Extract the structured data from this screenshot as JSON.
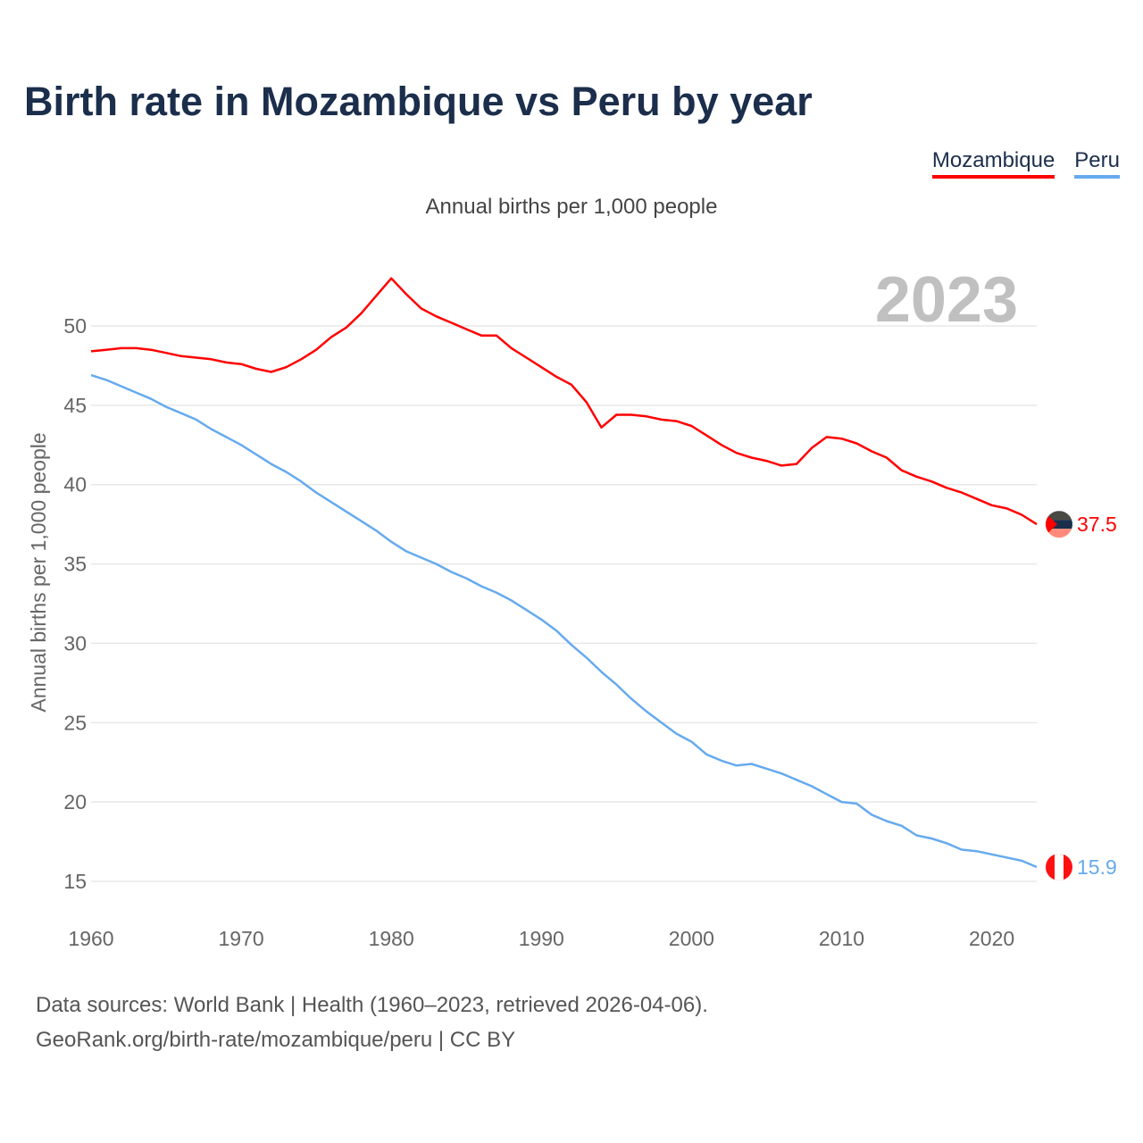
{
  "chart_data": {
    "type": "line",
    "title": "Birth rate in Mozambique vs Peru by year",
    "subtitle": "Annual births per 1,000 people",
    "ylabel": "Annual births per 1,000 people",
    "xlabel": "",
    "year_badge": "2023",
    "xlim": [
      1960,
      2023
    ],
    "ylim": [
      15,
      50
    ],
    "xticks": [
      "1960",
      "1970",
      "1980",
      "1990",
      "2000",
      "2010",
      "2020"
    ],
    "yticks": [
      "15",
      "20",
      "25",
      "30",
      "35",
      "40",
      "45",
      "50"
    ],
    "grid": true,
    "legend_position": "top-right",
    "x": [
      1960,
      1961,
      1962,
      1963,
      1964,
      1965,
      1966,
      1967,
      1968,
      1969,
      1970,
      1971,
      1972,
      1973,
      1974,
      1975,
      1976,
      1977,
      1978,
      1979,
      1980,
      1981,
      1982,
      1983,
      1984,
      1985,
      1986,
      1987,
      1988,
      1989,
      1990,
      1991,
      1992,
      1993,
      1994,
      1995,
      1996,
      1997,
      1998,
      1999,
      2000,
      2001,
      2002,
      2003,
      2004,
      2005,
      2006,
      2007,
      2008,
      2009,
      2010,
      2011,
      2012,
      2013,
      2014,
      2015,
      2016,
      2017,
      2018,
      2019,
      2020,
      2021,
      2022,
      2023
    ],
    "series": [
      {
        "name": "Mozambique",
        "color": "#ff0000",
        "end_label": "37.5",
        "values": [
          48.4,
          48.5,
          48.6,
          48.6,
          48.5,
          48.3,
          48.1,
          48.0,
          47.9,
          47.7,
          47.6,
          47.3,
          47.1,
          47.4,
          47.9,
          48.5,
          49.3,
          49.9,
          50.8,
          51.9,
          53.0,
          52.0,
          51.1,
          50.6,
          50.2,
          49.8,
          49.4,
          49.4,
          48.6,
          48.0,
          47.4,
          46.8,
          46.3,
          45.2,
          43.6,
          44.4,
          44.4,
          44.3,
          44.1,
          44.0,
          43.7,
          43.1,
          42.5,
          42.0,
          41.7,
          41.5,
          41.2,
          41.3,
          42.3,
          43.0,
          42.9,
          42.6,
          42.1,
          41.7,
          40.9,
          40.5,
          40.2,
          39.8,
          39.5,
          39.1,
          38.7,
          38.5,
          38.1,
          37.5
        ]
      },
      {
        "name": "Peru",
        "color": "#66aaee",
        "end_label": "15.9",
        "values": [
          46.9,
          46.6,
          46.2,
          45.8,
          45.4,
          44.9,
          44.5,
          44.1,
          43.5,
          43.0,
          42.5,
          41.9,
          41.3,
          40.8,
          40.2,
          39.5,
          38.9,
          38.3,
          37.7,
          37.1,
          36.4,
          35.8,
          35.4,
          35.0,
          34.5,
          34.1,
          33.6,
          33.2,
          32.7,
          32.1,
          31.5,
          30.8,
          29.9,
          29.1,
          28.2,
          27.4,
          26.5,
          25.7,
          25.0,
          24.3,
          23.8,
          23.0,
          22.6,
          22.3,
          22.4,
          22.1,
          21.8,
          21.4,
          21.0,
          20.5,
          20.0,
          19.9,
          19.2,
          18.8,
          18.5,
          17.9,
          17.7,
          17.4,
          17.0,
          16.9,
          16.7,
          16.5,
          16.3,
          15.9
        ]
      }
    ]
  },
  "footer": {
    "line1": "Data sources: World Bank | Health (1960–2023, retrieved 2026-04-06).",
    "line2": "GeoRank.org/birth-rate/mozambique/peru | CC BY"
  }
}
